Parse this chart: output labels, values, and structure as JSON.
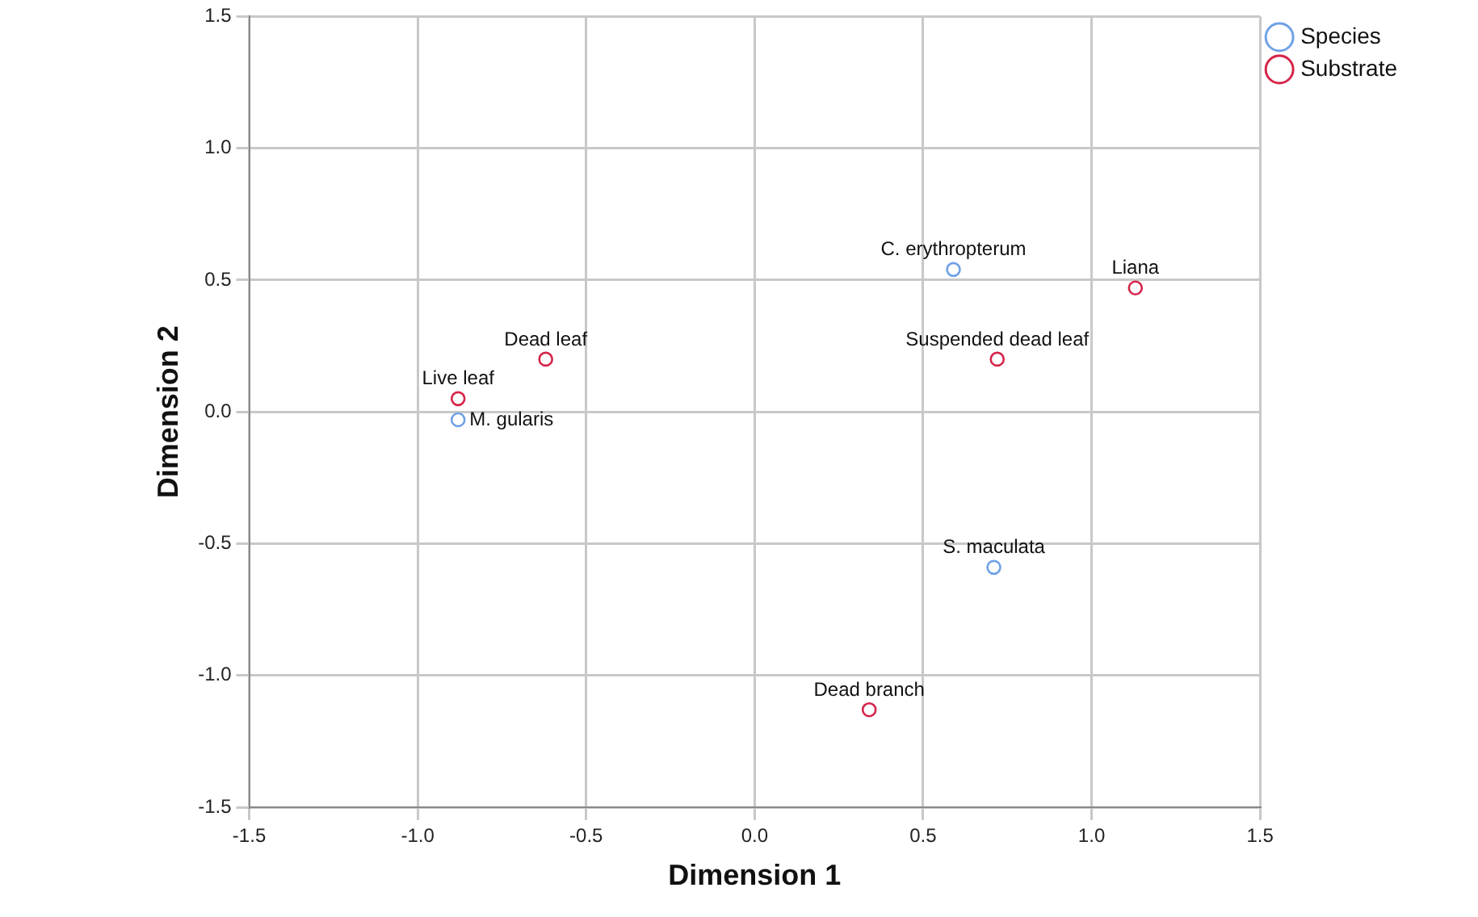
{
  "chart_data": {
    "type": "scatter",
    "xlabel": "Dimension 1",
    "ylabel": "Dimension 2",
    "xlim": [
      -1.5,
      1.5
    ],
    "ylim": [
      -1.5,
      1.5
    ],
    "xticks": [
      -1.5,
      {
        "value": -1,
        "label": "-1.0"
      },
      -0.5,
      {
        "value": 0,
        "label": "0.0"
      },
      0.5,
      {
        "value": 1,
        "label": "1.0"
      },
      1.5
    ],
    "yticks": [
      -1.5,
      {
        "value": -1,
        "label": "-1.0"
      },
      -0.5,
      {
        "value": 0,
        "label": "0.0"
      },
      0.5,
      {
        "value": 1,
        "label": "1.0"
      },
      1.5
    ],
    "grid": true,
    "legend": "top right",
    "marker": "circle",
    "series": [
      {
        "name": "Species",
        "color": "#6fa1e6",
        "x": [
          0.59,
          -0.88,
          0.71
        ],
        "values": [
          0.54,
          -0.03,
          -0.59
        ]
      },
      {
        "name": "Substrate",
        "color": "#d6254a",
        "x": [
          1.13,
          0.72,
          -0.62,
          -0.88,
          0.34
        ],
        "values": [
          0.47,
          0.2,
          0.2,
          0.05,
          -1.13
        ]
      }
    ],
    "annotations": [
      {
        "text": "C. erythropterum",
        "x": 0.59,
        "y": 0.54
      },
      {
        "text": "Liana",
        "x": 1.13,
        "y": 0.47
      },
      {
        "text": "Suspended dead leaf",
        "x": 0.72,
        "y": 0.2
      },
      {
        "text": "Dead leaf",
        "x": -0.62,
        "y": 0.2
      },
      {
        "text": "Live leaf",
        "x": -0.88,
        "y": 0.05
      },
      {
        "text": "M. gularis",
        "x": -0.88,
        "y": -0.03
      },
      {
        "text": "S. maculata",
        "x": 0.71,
        "y": -0.59
      },
      {
        "text": "Dead branch",
        "x": 0.34,
        "y": -1.13
      }
    ]
  }
}
